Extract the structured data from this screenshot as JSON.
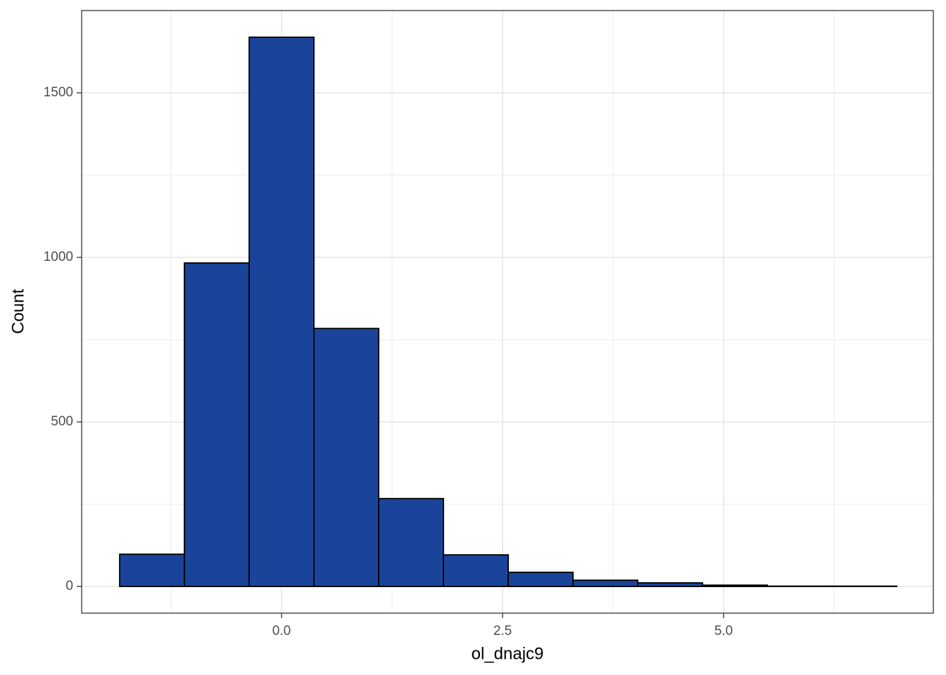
{
  "chart_data": {
    "type": "histogram",
    "x_label": "ol_dnajc9",
    "y_label": "Count",
    "bins": [
      -1.831,
      -1.099,
      -0.366,
      0.366,
      1.099,
      1.831,
      2.564,
      3.296,
      4.029,
      4.761,
      5.494,
      6.226,
      6.959
    ],
    "values": [
      98,
      983,
      1669,
      784,
      267,
      96,
      43,
      19,
      11,
      4,
      1,
      1
    ],
    "color": "#1a4499",
    "xlim": [
      -2.261,
      7.372
    ],
    "ylim": [
      -81,
      1750
    ],
    "xticks": [
      {
        "value": 0,
        "label": "0.0"
      },
      2.5,
      {
        "value": 5,
        "label": "5.0"
      }
    ],
    "yticks": [
      0,
      500,
      1000,
      1500
    ],
    "grid": true
  }
}
